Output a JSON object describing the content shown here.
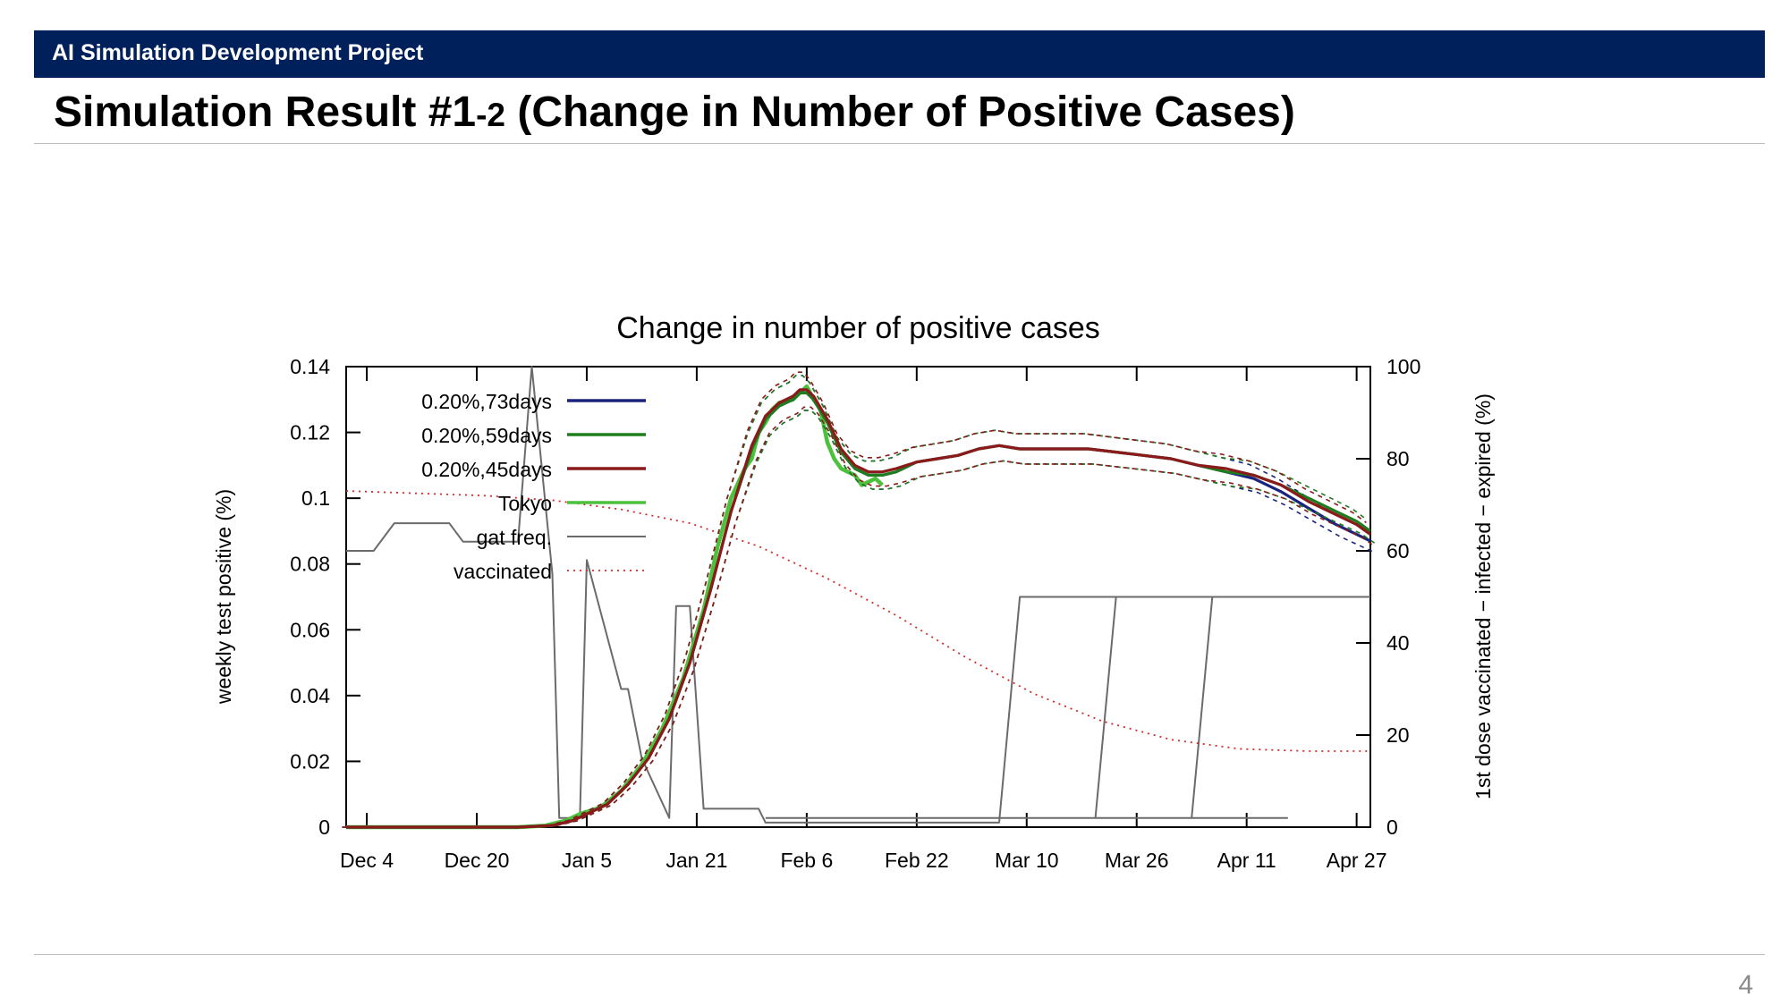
{
  "header": {
    "project": "AI Simulation Development Project"
  },
  "slide": {
    "title_part1": "Simulation Result #1",
    "title_small": "-2",
    "title_part2": " (Change in Number of Positive Cases)",
    "page_number": "4"
  },
  "colors": {
    "banner": "#00205b",
    "s73": "#1a237e",
    "s59": "#1e7d1e",
    "s45": "#8b1a1a",
    "tokyo": "#4cc13c",
    "gat": "#6b6b6b",
    "vaccinated": "#d42a2a"
  },
  "chart_data": {
    "type": "line",
    "title": "Change in number of positive cases",
    "ylabel": "weekly test positive (%)",
    "y2label": "1st dose vaccinated − infected − expired (%)",
    "xlim": [
      0,
      149
    ],
    "ylim": [
      0,
      0.14
    ],
    "y2lim": [
      0,
      100
    ],
    "xticks": [
      {
        "x": 3,
        "label": "Dec 4"
      },
      {
        "x": 19,
        "label": "Dec 20"
      },
      {
        "x": 35,
        "label": "Jan 5"
      },
      {
        "x": 51,
        "label": "Jan 21"
      },
      {
        "x": 67,
        "label": "Feb 6"
      },
      {
        "x": 83,
        "label": "Feb 22"
      },
      {
        "x": 99,
        "label": "Mar 10"
      },
      {
        "x": 115,
        "label": "Mar 26"
      },
      {
        "x": 131,
        "label": "Apr 11"
      },
      {
        "x": 147,
        "label": "Apr 27"
      }
    ],
    "yticks": [
      "0",
      "0.02",
      "0.04",
      "0.06",
      "0.08",
      "0.1",
      "0.12",
      "0.14"
    ],
    "y2ticks": [
      "0",
      "20",
      "40",
      "60",
      "80",
      "100"
    ],
    "legend_position": "top-left",
    "series": [
      {
        "name": "0.20%,73days",
        "axis": "y",
        "style": "solid",
        "color": "#1a237e",
        "band": true,
        "points": [
          [
            0,
            0
          ],
          [
            25,
            0
          ],
          [
            30,
            0.0005
          ],
          [
            33,
            0.002
          ],
          [
            35,
            0.004
          ],
          [
            38,
            0.007
          ],
          [
            41,
            0.013
          ],
          [
            44,
            0.021
          ],
          [
            47,
            0.033
          ],
          [
            50,
            0.05
          ],
          [
            53,
            0.072
          ],
          [
            56,
            0.096
          ],
          [
            59,
            0.115
          ],
          [
            61,
            0.124
          ],
          [
            63,
            0.128
          ],
          [
            65,
            0.13
          ],
          [
            66,
            0.132
          ],
          [
            67,
            0.132
          ],
          [
            68,
            0.13
          ],
          [
            70,
            0.123
          ],
          [
            72,
            0.114
          ],
          [
            74,
            0.109
          ],
          [
            76,
            0.107
          ],
          [
            78,
            0.107
          ],
          [
            80,
            0.108
          ],
          [
            83,
            0.111
          ],
          [
            86,
            0.112
          ],
          [
            89,
            0.113
          ],
          [
            92,
            0.115
          ],
          [
            95,
            0.116
          ],
          [
            98,
            0.115
          ],
          [
            101,
            0.115
          ],
          [
            104,
            0.115
          ],
          [
            108,
            0.115
          ],
          [
            112,
            0.114
          ],
          [
            116,
            0.113
          ],
          [
            120,
            0.112
          ],
          [
            124,
            0.11
          ],
          [
            128,
            0.108
          ],
          [
            132,
            0.106
          ],
          [
            136,
            0.102
          ],
          [
            140,
            0.097
          ],
          [
            144,
            0.092
          ],
          [
            147,
            0.089
          ],
          [
            149,
            0.087
          ]
        ]
      },
      {
        "name": "0.20%,59days",
        "axis": "y",
        "style": "solid",
        "color": "#1e7d1e",
        "band": true,
        "points": [
          [
            0,
            0
          ],
          [
            25,
            0
          ],
          [
            30,
            0.0005
          ],
          [
            33,
            0.002
          ],
          [
            35,
            0.004
          ],
          [
            38,
            0.007
          ],
          [
            41,
            0.013
          ],
          [
            44,
            0.021
          ],
          [
            47,
            0.033
          ],
          [
            50,
            0.05
          ],
          [
            53,
            0.072
          ],
          [
            56,
            0.096
          ],
          [
            59,
            0.115
          ],
          [
            61,
            0.124
          ],
          [
            63,
            0.128
          ],
          [
            65,
            0.13
          ],
          [
            66,
            0.132
          ],
          [
            67,
            0.132
          ],
          [
            68,
            0.13
          ],
          [
            70,
            0.123
          ],
          [
            72,
            0.114
          ],
          [
            74,
            0.109
          ],
          [
            76,
            0.107
          ],
          [
            78,
            0.107
          ],
          [
            80,
            0.108
          ],
          [
            83,
            0.111
          ],
          [
            86,
            0.112
          ],
          [
            89,
            0.113
          ],
          [
            92,
            0.115
          ],
          [
            95,
            0.116
          ],
          [
            98,
            0.115
          ],
          [
            101,
            0.115
          ],
          [
            104,
            0.115
          ],
          [
            108,
            0.115
          ],
          [
            112,
            0.114
          ],
          [
            116,
            0.113
          ],
          [
            120,
            0.112
          ],
          [
            124,
            0.11
          ],
          [
            128,
            0.108
          ],
          [
            132,
            0.107
          ],
          [
            136,
            0.104
          ],
          [
            140,
            0.1
          ],
          [
            144,
            0.096
          ],
          [
            147,
            0.093
          ],
          [
            149,
            0.09
          ]
        ]
      },
      {
        "name": "0.20%,45days",
        "axis": "y",
        "style": "solid",
        "color": "#8b1a1a",
        "band": true,
        "points": [
          [
            0,
            0
          ],
          [
            25,
            0
          ],
          [
            30,
            0.0005
          ],
          [
            33,
            0.002
          ],
          [
            35,
            0.004
          ],
          [
            38,
            0.007
          ],
          [
            41,
            0.013
          ],
          [
            44,
            0.021
          ],
          [
            47,
            0.033
          ],
          [
            50,
            0.05
          ],
          [
            53,
            0.072
          ],
          [
            56,
            0.096
          ],
          [
            59,
            0.116
          ],
          [
            61,
            0.125
          ],
          [
            63,
            0.129
          ],
          [
            65,
            0.131
          ],
          [
            66,
            0.133
          ],
          [
            67,
            0.133
          ],
          [
            68,
            0.131
          ],
          [
            70,
            0.124
          ],
          [
            72,
            0.115
          ],
          [
            74,
            0.11
          ],
          [
            76,
            0.108
          ],
          [
            78,
            0.108
          ],
          [
            80,
            0.109
          ],
          [
            83,
            0.111
          ],
          [
            86,
            0.112
          ],
          [
            89,
            0.113
          ],
          [
            92,
            0.115
          ],
          [
            95,
            0.116
          ],
          [
            98,
            0.115
          ],
          [
            101,
            0.115
          ],
          [
            104,
            0.115
          ],
          [
            108,
            0.115
          ],
          [
            112,
            0.114
          ],
          [
            116,
            0.113
          ],
          [
            120,
            0.112
          ],
          [
            124,
            0.11
          ],
          [
            128,
            0.109
          ],
          [
            132,
            0.107
          ],
          [
            136,
            0.104
          ],
          [
            140,
            0.099
          ],
          [
            144,
            0.095
          ],
          [
            147,
            0.092
          ],
          [
            149,
            0.089
          ]
        ]
      },
      {
        "name": "Tokyo",
        "axis": "y",
        "style": "solid",
        "color": "#4cc13c",
        "points": [
          [
            0,
            0
          ],
          [
            25,
            0
          ],
          [
            29,
            0.0005
          ],
          [
            32,
            0.002
          ],
          [
            34,
            0.004
          ],
          [
            37,
            0.006
          ],
          [
            40,
            0.011
          ],
          [
            43,
            0.019
          ],
          [
            46,
            0.03
          ],
          [
            49,
            0.045
          ],
          [
            52,
            0.066
          ],
          [
            54,
            0.085
          ],
          [
            56,
            0.1
          ],
          [
            58,
            0.109
          ],
          [
            59,
            0.112
          ],
          [
            60,
            0.12
          ],
          [
            61,
            0.123
          ],
          [
            62,
            0.127
          ],
          [
            63,
            0.129
          ],
          [
            65,
            0.13
          ],
          [
            67,
            0.134
          ],
          [
            68,
            0.13
          ],
          [
            69,
            0.127
          ],
          [
            70,
            0.117
          ],
          [
            71,
            0.112
          ],
          [
            72,
            0.109
          ],
          [
            73,
            0.108
          ],
          [
            74,
            0.107
          ],
          [
            75,
            0.104
          ],
          [
            76,
            0.105
          ],
          [
            77,
            0.106
          ],
          [
            78,
            0.104
          ]
        ]
      },
      {
        "name": "gat freq.",
        "axis": "y2",
        "style": "solid",
        "color": "#6b6b6b",
        "points": [
          [
            0,
            60
          ],
          [
            4,
            60
          ],
          [
            7,
            66
          ],
          [
            15,
            66
          ],
          [
            17,
            62
          ],
          [
            25,
            62
          ],
          [
            27,
            100
          ],
          [
            30,
            55
          ],
          [
            31,
            2
          ],
          [
            34,
            2
          ],
          [
            35,
            58
          ],
          [
            40,
            30
          ],
          [
            41,
            30
          ],
          [
            43,
            15
          ],
          [
            47,
            2
          ],
          [
            48,
            48
          ],
          [
            50,
            48
          ],
          [
            52,
            4
          ],
          [
            60,
            4
          ],
          [
            61,
            1
          ],
          [
            95,
            1
          ],
          [
            98,
            50
          ],
          [
            149,
            50
          ]
        ],
        "extra": [
          [
            [
              109,
              2
            ],
            [
              112,
              50
            ]
          ],
          [
            [
              123,
              2
            ],
            [
              126,
              50
            ]
          ],
          [
            [
              61,
              2
            ],
            [
              95,
              2
            ],
            [
              109,
              2
            ],
            [
              123,
              2
            ],
            [
              137,
              2
            ]
          ]
        ]
      },
      {
        "name": "vaccinated",
        "axis": "y2",
        "style": "dotted",
        "color": "#d42a2a",
        "points": [
          [
            0,
            73
          ],
          [
            20,
            72
          ],
          [
            30,
            71
          ],
          [
            40,
            69
          ],
          [
            50,
            66
          ],
          [
            60,
            61
          ],
          [
            70,
            54
          ],
          [
            80,
            46
          ],
          [
            90,
            37
          ],
          [
            100,
            29
          ],
          [
            110,
            23
          ],
          [
            120,
            19
          ],
          [
            130,
            17
          ],
          [
            140,
            16.5
          ],
          [
            149,
            16.5
          ]
        ]
      }
    ]
  }
}
